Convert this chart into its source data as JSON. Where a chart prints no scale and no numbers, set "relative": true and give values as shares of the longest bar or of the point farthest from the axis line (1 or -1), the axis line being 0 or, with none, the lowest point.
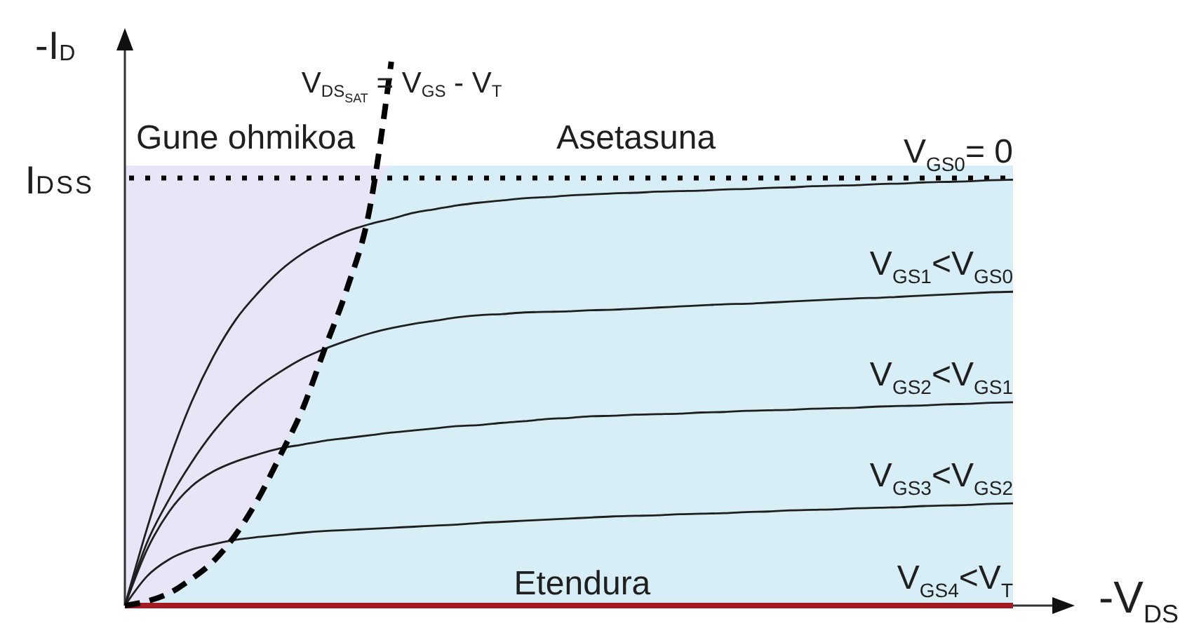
{
  "chart_data": {
    "type": "line",
    "relative": true,
    "xlabel": "-V$_{DS}$",
    "ylabel": "-I$_{D}$",
    "categories": [
      null,
      null,
      null,
      null,
      null,
      null,
      null,
      null,
      null,
      null,
      null,
      null,
      null,
      null,
      null,
      null,
      null,
      null,
      null,
      null,
      null,
      null,
      null,
      null,
      null,
      null,
      null,
      null,
      null,
      null,
      null,
      null,
      null,
      null,
      null,
      null,
      null,
      null,
      null,
      null,
      null
    ],
    "series": [
      {
        "type": "area",
        "color": "#e8e6f6",
        "values": [
          0.809,
          0.809,
          0.809,
          0.809,
          0.809,
          0.809,
          0.809,
          0.809,
          0.809,
          0.809,
          0.809,
          0.809,
          0.809,
          null,
          null,
          null,
          null,
          null,
          null,
          null,
          null,
          null,
          null,
          null,
          null,
          null,
          null,
          null,
          null,
          null,
          null,
          null,
          null,
          null,
          null,
          null,
          null,
          null,
          null,
          null,
          null
        ]
      },
      {
        "type": "area",
        "color": "#d7eef6",
        "values": [
          0,
          0.008,
          0.023,
          0.049,
          0.082,
          0.131,
          0.196,
          0.276,
          0.361,
          0.472,
          0.582,
          0.724,
          0.809,
          0.809,
          0.809,
          0.809,
          0.809,
          0.809,
          0.809,
          0.809,
          0.809,
          0.809,
          0.809,
          0.809,
          0.809,
          0.809,
          0.809,
          0.809,
          0.809,
          0.809,
          0.809,
          0.809,
          0.809,
          0.809,
          0.809,
          0.809,
          0.809,
          0.809,
          0.809,
          0.809,
          0.809
        ]
      },
      {
        "name": "V$_{GS0}$= 0",
        "color": "#1f1f1f",
        "values": [
          0,
          0.142,
          0.268,
          0.374,
          0.459,
          0.526,
          0.575,
          0.616,
          0.647,
          0.67,
          0.688,
          0.701,
          0.711,
          0.722,
          0.729,
          0.736,
          0.741,
          0.745,
          0.749,
          0.751,
          0.754,
          0.756,
          0.758,
          0.759,
          0.761,
          0.762,
          0.763,
          0.765,
          0.766,
          0.768,
          0.769,
          0.771,
          0.772,
          0.773,
          0.775,
          0.776,
          0.778,
          0.779,
          0.78,
          0.782,
          0.783
        ]
      },
      {
        "name": "V$_{GS1}$<V$_{GS0}$",
        "color": "#1f1f1f",
        "values": [
          0,
          0.116,
          0.196,
          0.263,
          0.32,
          0.366,
          0.402,
          0.43,
          0.454,
          0.472,
          0.487,
          0.5,
          0.51,
          0.518,
          0.524,
          0.53,
          0.534,
          0.536,
          0.539,
          0.54,
          0.541,
          0.543,
          0.544,
          0.546,
          0.548,
          0.55,
          0.552,
          0.554,
          0.555,
          0.557,
          0.559,
          0.561,
          0.563,
          0.565,
          0.566,
          0.568,
          0.57,
          0.572,
          0.574,
          0.576,
          0.577
        ]
      },
      {
        "name": "V$_{GS2}$<V$_{GS1}$",
        "color": "#1f1f1f",
        "values": [
          0,
          0.103,
          0.173,
          0.219,
          0.247,
          0.265,
          0.278,
          0.289,
          0.296,
          0.303,
          0.308,
          0.313,
          0.318,
          0.322,
          0.326,
          0.33,
          0.332,
          0.336,
          0.339,
          0.343,
          0.345,
          0.348,
          0.349,
          0.351,
          0.352,
          0.353,
          0.355,
          0.356,
          0.358,
          0.359,
          0.36,
          0.362,
          0.363,
          0.364,
          0.366,
          0.367,
          0.368,
          0.37,
          0.371,
          0.373,
          0.374
        ]
      },
      {
        "name": "V$_{GS3}$<V$_{GS2}$",
        "color": "#1f1f1f",
        "values": [
          0,
          0.054,
          0.085,
          0.103,
          0.113,
          0.121,
          0.126,
          0.13,
          0.134,
          0.137,
          0.139,
          0.141,
          0.143,
          0.145,
          0.147,
          0.149,
          0.152,
          0.154,
          0.156,
          0.158,
          0.16,
          0.162,
          0.164,
          0.165,
          0.166,
          0.168,
          0.169,
          0.17,
          0.172,
          0.173,
          0.175,
          0.176,
          0.177,
          0.179,
          0.18,
          0.181,
          0.183,
          0.184,
          0.185,
          0.187,
          0.188
        ]
      },
      {
        "name": "V$_{GS4}$<V$_{T}$",
        "color": "#a01c22",
        "values": [
          0,
          0,
          0,
          0,
          0,
          0,
          0,
          0,
          0,
          0,
          0,
          0,
          0,
          0,
          0,
          0,
          0,
          0,
          0,
          0,
          0,
          0,
          0,
          0,
          0,
          0,
          0,
          0,
          0,
          0,
          0,
          0,
          0,
          0,
          0,
          0,
          0,
          0,
          0,
          0,
          0
        ]
      },
      {
        "name": "V$_{DS}$$_{SAT}$ = V$_{GS}$ - V$_{T}$",
        "color": "#000000",
        "line_style": "dashed",
        "values": [
          0,
          0.008,
          0.023,
          0.049,
          0.082,
          0.131,
          0.196,
          0.276,
          0.361,
          0.472,
          0.582,
          0.724,
          1,
          null,
          null,
          null,
          null,
          null,
          null,
          null,
          null,
          null,
          null,
          null,
          null,
          null,
          null,
          null,
          null,
          null,
          null,
          null,
          null,
          null,
          null,
          null,
          null,
          null,
          null,
          null,
          null
        ]
      }
    ],
    "ref_lines": [
      {
        "axis": "y",
        "value": 0.786,
        "label": "I$_{DSS}$",
        "color": "#000000",
        "line_style": "dotted"
      }
    ],
    "annotations": [
      "Gune ohmikoa",
      "Asetasuna",
      "Etendura"
    ]
  }
}
